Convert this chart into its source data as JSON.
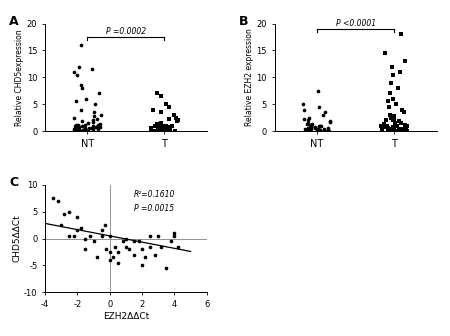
{
  "panel_A": {
    "label": "A",
    "title": "P =0.0002",
    "ylabel": "Relative CHD5expression",
    "xlabels": [
      "NT",
      "T"
    ],
    "ylim": [
      0,
      20
    ],
    "yticks": [
      0,
      5,
      10,
      15,
      20
    ],
    "NT_circles": [
      0.1,
      0.1,
      0.1,
      0.1,
      0.1,
      0.1,
      0.15,
      0.2,
      0.2,
      0.2,
      0.2,
      0.3,
      0.3,
      0.4,
      0.4,
      0.5,
      0.5,
      0.6,
      0.6,
      0.7,
      0.8,
      0.8,
      0.9,
      0.9,
      1.0,
      1.0,
      1.0,
      1.0,
      1.1,
      1.1,
      1.2,
      1.2,
      1.3,
      1.5,
      1.6,
      1.8,
      2.0,
      2.2,
      2.5,
      2.8,
      3.0,
      3.5,
      4.0,
      5.0,
      5.5,
      6.0,
      7.0,
      8.0,
      8.5,
      10.5,
      11.0,
      11.5,
      12.0,
      16.0
    ],
    "T_squares": [
      0.05,
      0.05,
      0.1,
      0.1,
      0.1,
      0.1,
      0.1,
      0.1,
      0.1,
      0.2,
      0.2,
      0.2,
      0.2,
      0.3,
      0.3,
      0.4,
      0.5,
      0.5,
      0.6,
      0.7,
      0.8,
      0.8,
      0.9,
      1.0,
      1.0,
      1.0,
      1.2,
      1.3,
      1.5,
      1.8,
      2.0,
      2.2,
      2.5,
      3.0,
      3.5,
      4.0,
      4.5,
      5.0,
      6.5,
      7.0
    ]
  },
  "panel_B": {
    "label": "B",
    "title": "P <0.0001",
    "ylabel": "Relative EZH2 expression",
    "xlabels": [
      "NT",
      "T"
    ],
    "ylim": [
      0,
      20
    ],
    "yticks": [
      0,
      5,
      10,
      15,
      20
    ],
    "NT_circles": [
      0.1,
      0.1,
      0.1,
      0.1,
      0.2,
      0.2,
      0.2,
      0.3,
      0.3,
      0.3,
      0.4,
      0.4,
      0.5,
      0.5,
      0.6,
      0.7,
      0.8,
      0.8,
      0.9,
      1.0,
      1.0,
      1.0,
      1.1,
      1.2,
      1.3,
      1.4,
      1.5,
      1.6,
      1.8,
      2.0,
      2.2,
      2.5,
      3.0,
      3.5,
      4.0,
      4.5,
      5.0,
      7.5
    ],
    "T_squares": [
      0.05,
      0.05,
      0.1,
      0.1,
      0.1,
      0.1,
      0.1,
      0.2,
      0.2,
      0.2,
      0.3,
      0.3,
      0.4,
      0.5,
      0.5,
      0.6,
      0.7,
      0.8,
      0.8,
      0.9,
      1.0,
      1.0,
      1.0,
      1.0,
      1.2,
      1.3,
      1.5,
      1.5,
      1.8,
      2.0,
      2.0,
      2.2,
      2.5,
      2.8,
      3.0,
      3.5,
      4.0,
      4.5,
      5.0,
      5.5,
      6.0,
      7.0,
      8.0,
      9.0,
      10.5,
      11.0,
      12.0,
      13.0,
      14.5,
      18.0
    ]
  },
  "panel_C": {
    "label": "C",
    "xlabel": "EZH2ΔΔCt",
    "ylabel": "CHD5ΔΔCt",
    "xlim": [
      -4,
      6
    ],
    "ylim": [
      -10,
      10
    ],
    "xticks": [
      -4,
      -2,
      0,
      2,
      4,
      6
    ],
    "yticks": [
      -10,
      -5,
      0,
      5,
      10
    ],
    "annotation_line1": "R²=0.1610",
    "annotation_line2": "P =0.0015",
    "x_data": [
      -3.5,
      -3.2,
      -3.0,
      -2.8,
      -2.5,
      -2.5,
      -2.2,
      -2.0,
      -2.0,
      -1.8,
      -1.5,
      -1.5,
      -1.2,
      -1.0,
      -0.8,
      -0.5,
      -0.5,
      -0.3,
      -0.2,
      0.0,
      0.0,
      0.0,
      0.2,
      0.3,
      0.5,
      0.5,
      0.8,
      1.0,
      1.0,
      1.2,
      1.5,
      1.5,
      1.8,
      2.0,
      2.0,
      2.2,
      2.5,
      2.5,
      2.8,
      3.0,
      3.2,
      3.5,
      3.8,
      4.0,
      4.0,
      4.2
    ],
    "y_data": [
      7.5,
      7.0,
      2.5,
      4.5,
      5.0,
      0.5,
      0.5,
      4.0,
      1.5,
      2.0,
      0.0,
      -2.0,
      0.5,
      -0.5,
      -3.5,
      0.5,
      1.5,
      2.5,
      -2.0,
      0.5,
      -2.5,
      -4.0,
      -3.5,
      -1.5,
      -2.5,
      -4.5,
      -0.5,
      -1.5,
      0.0,
      -2.0,
      -0.5,
      -3.0,
      -0.5,
      -2.0,
      -5.0,
      -3.5,
      -1.5,
      0.5,
      -3.0,
      0.5,
      -1.5,
      -5.5,
      -0.5,
      0.5,
      1.0,
      -1.5
    ],
    "slope": -0.58,
    "intercept": 0.5
  },
  "figure_bg": "#ffffff",
  "marker_color": "#000000"
}
